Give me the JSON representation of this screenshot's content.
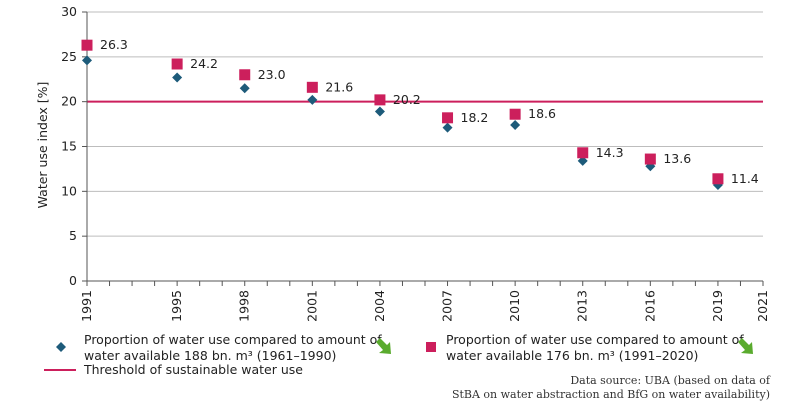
{
  "chart_data": {
    "type": "scatter",
    "xlabel": "",
    "ylabel": "Water use index [%]",
    "xlim": [
      1991,
      2021
    ],
    "ylim": [
      0,
      30
    ],
    "x_ticks": [
      "1991",
      "1995",
      "1998",
      "2001",
      "2004",
      "2007",
      "2010",
      "2013",
      "2016",
      "2019",
      "2021"
    ],
    "y_ticks": [
      "0",
      "5",
      "10",
      "15",
      "20",
      "25",
      "30"
    ],
    "series": [
      {
        "name": "Proportion of water use compared to amount of water available 188 bn. m³ (1961–1990)",
        "marker": "diamond",
        "color": "#1d5b7a",
        "x": [
          1991,
          1995,
          1998,
          2001,
          2004,
          2007,
          2010,
          2013,
          2016,
          2019
        ],
        "values": [
          24.6,
          22.7,
          21.5,
          20.2,
          18.9,
          17.1,
          17.4,
          13.4,
          12.8,
          10.7
        ]
      },
      {
        "name": "Proportion of water use compared to amount of water available 176 bn. m³ (1991–2020)",
        "marker": "square",
        "color": "#cc1f5c",
        "x": [
          1991,
          1995,
          1998,
          2001,
          2004,
          2007,
          2010,
          2013,
          2016,
          2019
        ],
        "values": [
          26.3,
          24.2,
          23.0,
          21.6,
          20.2,
          18.2,
          18.6,
          14.3,
          13.6,
          11.4
        ],
        "labels": [
          "26.3",
          "24.2",
          "23.0",
          "21.6",
          "20.2",
          "18.2",
          "18.6",
          "14.3",
          "13.6",
          "11.4"
        ]
      }
    ],
    "threshold": {
      "name": "Threshold of sustainable water use",
      "value": 20,
      "color": "#cc1f5c"
    },
    "trend_arrow_color": "#5aab2e"
  },
  "legend": {
    "item1_line1": "Proportion of water use compared to amount of",
    "item1_line2": "water available 188 bn. m³ (1961–1990)",
    "item2_line1": "Proportion of water use compared to amount of",
    "item2_line2": "water available 176 bn. m³ (1991–2020)",
    "threshold_label": "Threshold of sustainable water use"
  },
  "source": {
    "line1": "Data source: UBA (based on data of",
    "line2": "StBA on water abstraction and BfG on water availability)"
  }
}
